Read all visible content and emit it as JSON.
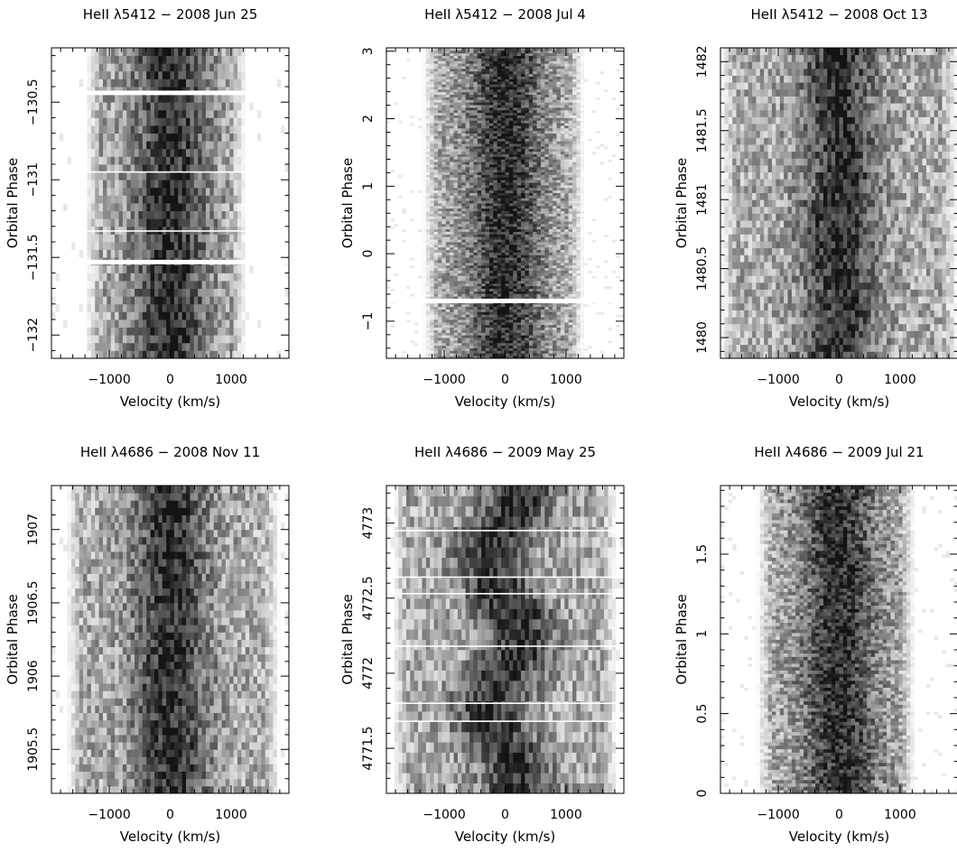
{
  "chart_data": [
    {
      "type": "heatmap",
      "title": "HeII λ5412 − 2008 Jun 25",
      "xlabel": "Velocity (km/s)",
      "ylabel": "Orbital Phase",
      "xlim": [
        -1950,
        1950
      ],
      "ylim": [
        -132.15,
        -130.15
      ],
      "x_ticks": [
        -1000,
        0,
        1000
      ],
      "y_ticks": [
        -132,
        -131.5,
        -131,
        -130.5
      ],
      "y_ticks_labels": [
        "−132",
        "−131.5",
        "−131",
        "−130.5"
      ],
      "data_vrange": [
        -1400,
        1250
      ],
      "trail_amplitude": 0,
      "cells_y": 40,
      "gaps": [
        -130.44,
        -131.53
      ],
      "thin_gaps": [
        -130.95,
        -131.33
      ]
    },
    {
      "type": "heatmap",
      "title": "HeII λ5412 − 2008 Jul 4",
      "xlabel": "Velocity (km/s)",
      "ylabel": "Orbital Phase",
      "xlim": [
        -1950,
        1950
      ],
      "ylim": [
        -1.55,
        3.05
      ],
      "x_ticks": [
        -1000,
        0,
        1000
      ],
      "y_ticks": [
        -1,
        0,
        1,
        2,
        3
      ],
      "y_ticks_labels": [
        "−1",
        "0",
        "1",
        "2",
        "3"
      ],
      "data_vrange": [
        -1350,
        1300
      ],
      "trail_amplitude": 0,
      "cells_y": 120,
      "gaps": [
        -0.7
      ],
      "thin_gaps": []
    },
    {
      "type": "heatmap",
      "title": "HeII λ5412 − 2008 Oct 13",
      "xlabel": "Velocity (km/s)",
      "ylabel": "Orbital Phase",
      "xlim": [
        -1950,
        1950
      ],
      "ylim": [
        1479.85,
        1482.1
      ],
      "x_ticks": [
        -1000,
        0,
        1000
      ],
      "y_ticks": [
        1480,
        1480.5,
        1481,
        1481.5,
        1482
      ],
      "y_ticks_labels": [
        "1480",
        "1480.5",
        "1481",
        "1481.5",
        "1482"
      ],
      "data_vrange": [
        -1950,
        1950
      ],
      "trail_amplitude": 60,
      "cells_y": 45,
      "gaps": [],
      "thin_gaps": []
    },
    {
      "type": "heatmap",
      "title": "HeII λ4686 − 2008 Nov 11",
      "xlabel": "Velocity (km/s)",
      "ylabel": "Orbital Phase",
      "xlim": [
        -1950,
        1950
      ],
      "ylim": [
        1905.2,
        1907.3
      ],
      "x_ticks": [
        -1000,
        0,
        1000
      ],
      "y_ticks": [
        1905.5,
        1906,
        1906.5,
        1907
      ],
      "y_ticks_labels": [
        "1905.5",
        "1906",
        "1906.5",
        "1907"
      ],
      "data_vrange": [
        -1700,
        1800
      ],
      "trail_amplitude": 0,
      "cells_y": 42,
      "gaps": [],
      "thin_gaps": []
    },
    {
      "type": "heatmap",
      "title": "HeII λ4686 − 2009 May 25",
      "xlabel": "Velocity (km/s)",
      "ylabel": "Orbital Phase",
      "xlim": [
        -1950,
        1950
      ],
      "ylim": [
        4771.2,
        4773.25
      ],
      "x_ticks": [
        -1000,
        0,
        1000
      ],
      "y_ticks": [
        4771.5,
        4772,
        4772.5,
        4773
      ],
      "y_ticks_labels": [
        "4771.5",
        "4772",
        "4772.5",
        "4773"
      ],
      "data_vrange": [
        -1850,
        1850
      ],
      "trail_amplitude": 250,
      "cells_y": 30,
      "gaps": [],
      "thin_gaps": [
        4772.95,
        4772.64,
        4772.53,
        4772.18,
        4771.8,
        4771.68
      ]
    },
    {
      "type": "heatmap",
      "title": "HeII λ4686 − 2009 Jul 21",
      "xlabel": "Velocity (km/s)",
      "ylabel": "Orbital Phase",
      "xlim": [
        -1950,
        1950
      ],
      "ylim": [
        0,
        1.93
      ],
      "x_ticks": [
        -1000,
        0,
        1000
      ],
      "y_ticks": [
        0,
        0.5,
        1,
        1.5
      ],
      "y_ticks_labels": [
        "0",
        "0.5",
        "1",
        "1.5"
      ],
      "data_vrange": [
        -1350,
        1250
      ],
      "trail_amplitude": 40,
      "cells_y": 90,
      "gaps": [],
      "thin_gaps": []
    }
  ]
}
